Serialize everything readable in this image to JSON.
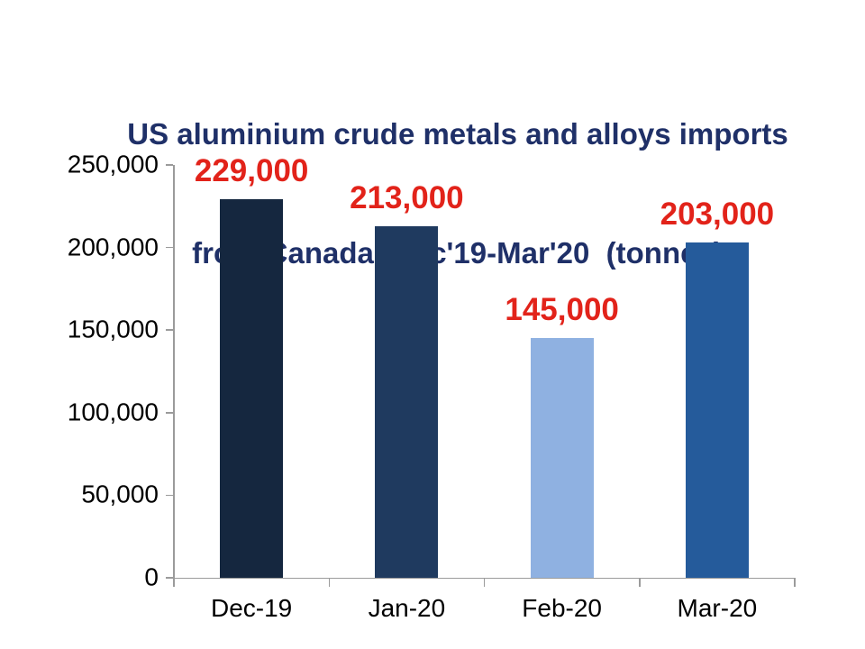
{
  "title": {
    "line1": "US aluminium crude metals and alloys imports",
    "line2": "from Canada: Dec'19-Mar'20  (tonnes)"
  },
  "chart_data": {
    "type": "bar",
    "title": "US aluminium crude metals and alloys imports from Canada: Dec'19-Mar'20 (tonnes)",
    "categories": [
      "Dec-19",
      "Jan-20",
      "Feb-20",
      "Mar-20"
    ],
    "values": [
      229000,
      213000,
      145000,
      203000
    ],
    "data_labels": [
      "229,000",
      "213,000",
      "145,000",
      "203,000"
    ],
    "bar_colors": [
      "#15273f",
      "#1f3a5f",
      "#8fb1e1",
      "#255b9b"
    ],
    "xlabel": "",
    "ylabel": "",
    "ylim": [
      0,
      250000
    ],
    "ytick_interval": 50000,
    "ytick_labels_top_to_bottom": [
      "250,000",
      "200,000",
      "150,000",
      "100,000",
      "50,000",
      "0"
    ],
    "grid": false,
    "legend_position": "none",
    "data_label_color": "#e2231a",
    "axis_color": "#9b9b9b",
    "tick_label_color": "#000000",
    "title_color": "#1f3068",
    "background_color": "#ffffff"
  }
}
